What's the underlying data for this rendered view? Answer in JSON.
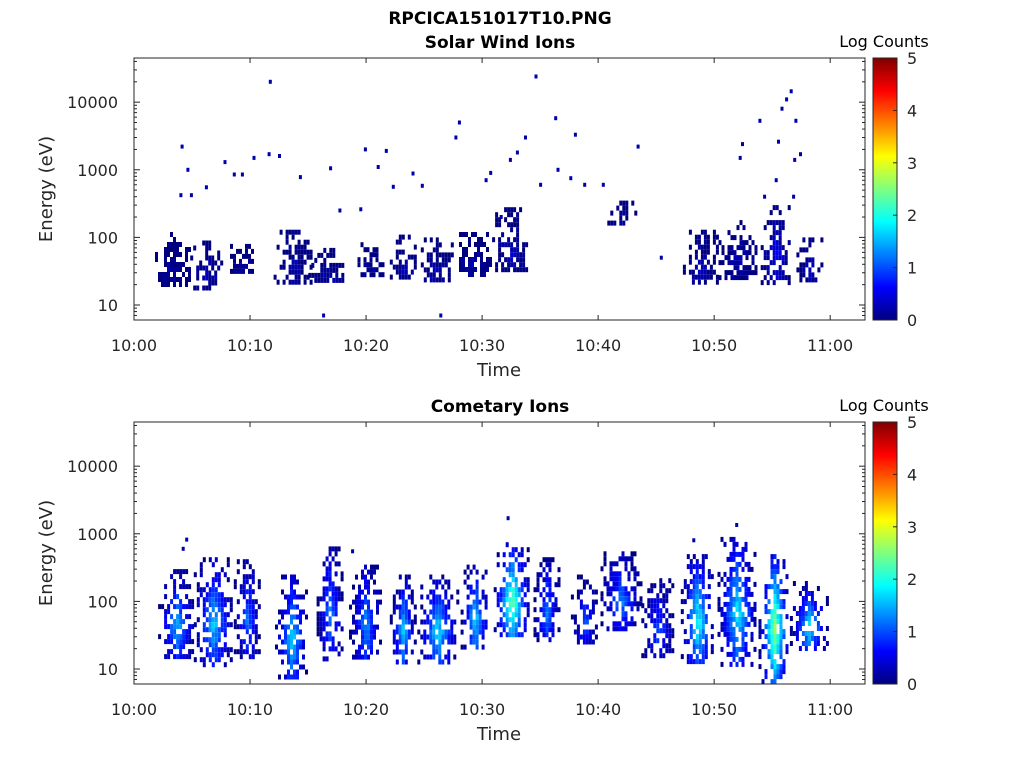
{
  "figure": {
    "title": "RPCICA151017T10.PNG"
  },
  "colormap": {
    "name": "jet",
    "label": "Log Counts",
    "range": [
      0,
      5
    ],
    "ticks": [
      "0",
      "1",
      "2",
      "3",
      "4",
      "5"
    ],
    "stops": [
      "#00007f",
      "#0000ff",
      "#007fff",
      "#00ffff",
      "#7fff7f",
      "#ffff00",
      "#ff7f00",
      "#ff0000",
      "#7f0000"
    ]
  },
  "chart_data": [
    {
      "type": "heatmap",
      "title": "Solar Wind Ions",
      "xlabel": "Time",
      "ylabel": "Energy (eV)",
      "x_ticks": [
        "10:00",
        "10:10",
        "10:20",
        "10:30",
        "10:40",
        "10:50",
        "11:00"
      ],
      "y_ticks": [
        "10",
        "100",
        "1000",
        "10000"
      ],
      "y_scale": "log",
      "xlim_minutes": [
        0,
        63
      ],
      "ylim_eV": [
        6,
        45000
      ],
      "colorbar": {
        "label": "Log Counts",
        "range": [
          0,
          5
        ],
        "ticks": [
          "0",
          "1",
          "2",
          "3",
          "4",
          "5"
        ]
      },
      "bursts": [
        {
          "t": 3.3,
          "e_low": 20,
          "e_high": 120,
          "level": 0.3
        },
        {
          "t": 6.2,
          "e_low": 18,
          "e_high": 90,
          "level": 0.35
        },
        {
          "t": 9.2,
          "e_low": 30,
          "e_high": 80,
          "level": 0.3
        },
        {
          "t": 13.7,
          "e_low": 20,
          "e_high": 130,
          "level": 0.35
        },
        {
          "t": 16.7,
          "e_low": 22,
          "e_high": 70,
          "level": 0.3
        },
        {
          "t": 20.3,
          "e_low": 30,
          "e_high": 85,
          "level": 0.3
        },
        {
          "t": 23.2,
          "e_low": 28,
          "e_high": 110,
          "level": 0.35
        },
        {
          "t": 25.9,
          "e_low": 25,
          "e_high": 100,
          "level": 0.35
        },
        {
          "t": 29.3,
          "e_low": 28,
          "e_high": 120,
          "level": 0.35
        },
        {
          "t": 32.4,
          "e_low": 35,
          "e_high": 280,
          "level": 0.4
        },
        {
          "t": 42.0,
          "e_low": 160,
          "e_high": 350,
          "level": 0.3
        },
        {
          "t": 48.8,
          "e_low": 20,
          "e_high": 130,
          "level": 0.35
        },
        {
          "t": 52.0,
          "e_low": 25,
          "e_high": 180,
          "level": 0.35
        },
        {
          "t": 55.3,
          "e_low": 20,
          "e_high": 300,
          "level": 0.6
        },
        {
          "t": 58.2,
          "e_low": 25,
          "e_high": 100,
          "level": 0.35
        }
      ],
      "scatter": [
        {
          "t": 4.1,
          "e": 2200
        },
        {
          "t": 4.6,
          "e": 1000
        },
        {
          "t": 4.0,
          "e": 420
        },
        {
          "t": 4.9,
          "e": 420
        },
        {
          "t": 6.2,
          "e": 550
        },
        {
          "t": 7.8,
          "e": 1300
        },
        {
          "t": 8.6,
          "e": 850
        },
        {
          "t": 9.3,
          "e": 850
        },
        {
          "t": 10.3,
          "e": 1500
        },
        {
          "t": 11.6,
          "e": 1700
        },
        {
          "t": 11.7,
          "e": 20000
        },
        {
          "t": 12.5,
          "e": 1600
        },
        {
          "t": 14.3,
          "e": 780
        },
        {
          "t": 16.9,
          "e": 1050
        },
        {
          "t": 17.7,
          "e": 250
        },
        {
          "t": 19.5,
          "e": 260
        },
        {
          "t": 19.9,
          "e": 2000
        },
        {
          "t": 21.0,
          "e": 1100
        },
        {
          "t": 21.7,
          "e": 1900
        },
        {
          "t": 22.3,
          "e": 560
        },
        {
          "t": 24.0,
          "e": 880
        },
        {
          "t": 24.8,
          "e": 580
        },
        {
          "t": 27.7,
          "e": 3000
        },
        {
          "t": 28.0,
          "e": 5000
        },
        {
          "t": 30.3,
          "e": 700
        },
        {
          "t": 30.7,
          "e": 900
        },
        {
          "t": 31.6,
          "e": 200
        },
        {
          "t": 32.4,
          "e": 1400
        },
        {
          "t": 33.0,
          "e": 1800
        },
        {
          "t": 33.7,
          "e": 3000
        },
        {
          "t": 34.6,
          "e": 24000
        },
        {
          "t": 35.0,
          "e": 600
        },
        {
          "t": 36.3,
          "e": 5800
        },
        {
          "t": 36.5,
          "e": 1000
        },
        {
          "t": 37.6,
          "e": 750
        },
        {
          "t": 38.0,
          "e": 3300
        },
        {
          "t": 38.8,
          "e": 600
        },
        {
          "t": 40.4,
          "e": 600
        },
        {
          "t": 43.4,
          "e": 2200
        },
        {
          "t": 45.4,
          "e": 50
        },
        {
          "t": 52.2,
          "e": 1500
        },
        {
          "t": 52.4,
          "e": 2400
        },
        {
          "t": 53.9,
          "e": 5300
        },
        {
          "t": 54.3,
          "e": 400
        },
        {
          "t": 55.3,
          "e": 700
        },
        {
          "t": 55.5,
          "e": 2600
        },
        {
          "t": 55.8,
          "e": 8000
        },
        {
          "t": 56.2,
          "e": 11000
        },
        {
          "t": 56.6,
          "e": 14500
        },
        {
          "t": 57.0,
          "e": 5300
        },
        {
          "t": 56.9,
          "e": 1400
        },
        {
          "t": 57.4,
          "e": 1700
        },
        {
          "t": 56.8,
          "e": 400
        },
        {
          "t": 16.3,
          "e": 7
        },
        {
          "t": 26.4,
          "e": 7
        }
      ]
    },
    {
      "type": "heatmap",
      "title": "Cometary Ions",
      "xlabel": "Time",
      "ylabel": "Energy (eV)",
      "x_ticks": [
        "10:00",
        "10:10",
        "10:20",
        "10:30",
        "10:40",
        "10:50",
        "11:00"
      ],
      "y_ticks": [
        "10",
        "100",
        "1000",
        "10000"
      ],
      "y_scale": "log",
      "xlim_minutes": [
        0,
        63
      ],
      "ylim_eV": [
        6,
        45000
      ],
      "colorbar": {
        "label": "Log Counts",
        "range": [
          0,
          5
        ],
        "ticks": [
          "0",
          "1",
          "2",
          "3",
          "4",
          "5"
        ]
      },
      "bursts": [
        {
          "t": 3.6,
          "e_low": 15,
          "e_high": 300,
          "level": 1.4
        },
        {
          "t": 6.8,
          "e_low": 12,
          "e_high": 450,
          "level": 1.5
        },
        {
          "t": 9.7,
          "e_low": 15,
          "e_high": 420,
          "level": 1.1
        },
        {
          "t": 13.5,
          "e_low": 7,
          "e_high": 250,
          "level": 1.6
        },
        {
          "t": 16.8,
          "e_low": 14,
          "e_high": 650,
          "level": 1.2
        },
        {
          "t": 19.9,
          "e_low": 14,
          "e_high": 350,
          "level": 1.3
        },
        {
          "t": 23.1,
          "e_low": 12,
          "e_high": 250,
          "level": 1.5
        },
        {
          "t": 26.1,
          "e_low": 12,
          "e_high": 250,
          "level": 1.6
        },
        {
          "t": 29.3,
          "e_low": 20,
          "e_high": 350,
          "level": 1.6
        },
        {
          "t": 32.5,
          "e_low": 30,
          "e_high": 750,
          "level": 2.2
        },
        {
          "t": 35.5,
          "e_low": 25,
          "e_high": 450,
          "level": 1.2
        },
        {
          "t": 38.8,
          "e_low": 25,
          "e_high": 250,
          "level": 1.0
        },
        {
          "t": 41.9,
          "e_low": 40,
          "e_high": 550,
          "level": 1.2
        },
        {
          "t": 45.1,
          "e_low": 15,
          "e_high": 220,
          "level": 1.0
        },
        {
          "t": 48.5,
          "e_low": 12,
          "e_high": 500,
          "level": 1.8
        },
        {
          "t": 51.9,
          "e_low": 12,
          "e_high": 900,
          "level": 1.7
        },
        {
          "t": 55.1,
          "e_low": 7,
          "e_high": 500,
          "level": 2.4
        },
        {
          "t": 58.1,
          "e_low": 20,
          "e_high": 200,
          "level": 1.6
        }
      ],
      "scatter": [
        {
          "t": 4.5,
          "e": 820
        },
        {
          "t": 4.2,
          "e": 600
        },
        {
          "t": 32.2,
          "e": 1700
        },
        {
          "t": 51.9,
          "e": 1350
        },
        {
          "t": 48.2,
          "e": 800
        },
        {
          "t": 18.8,
          "e": 550
        }
      ]
    }
  ]
}
